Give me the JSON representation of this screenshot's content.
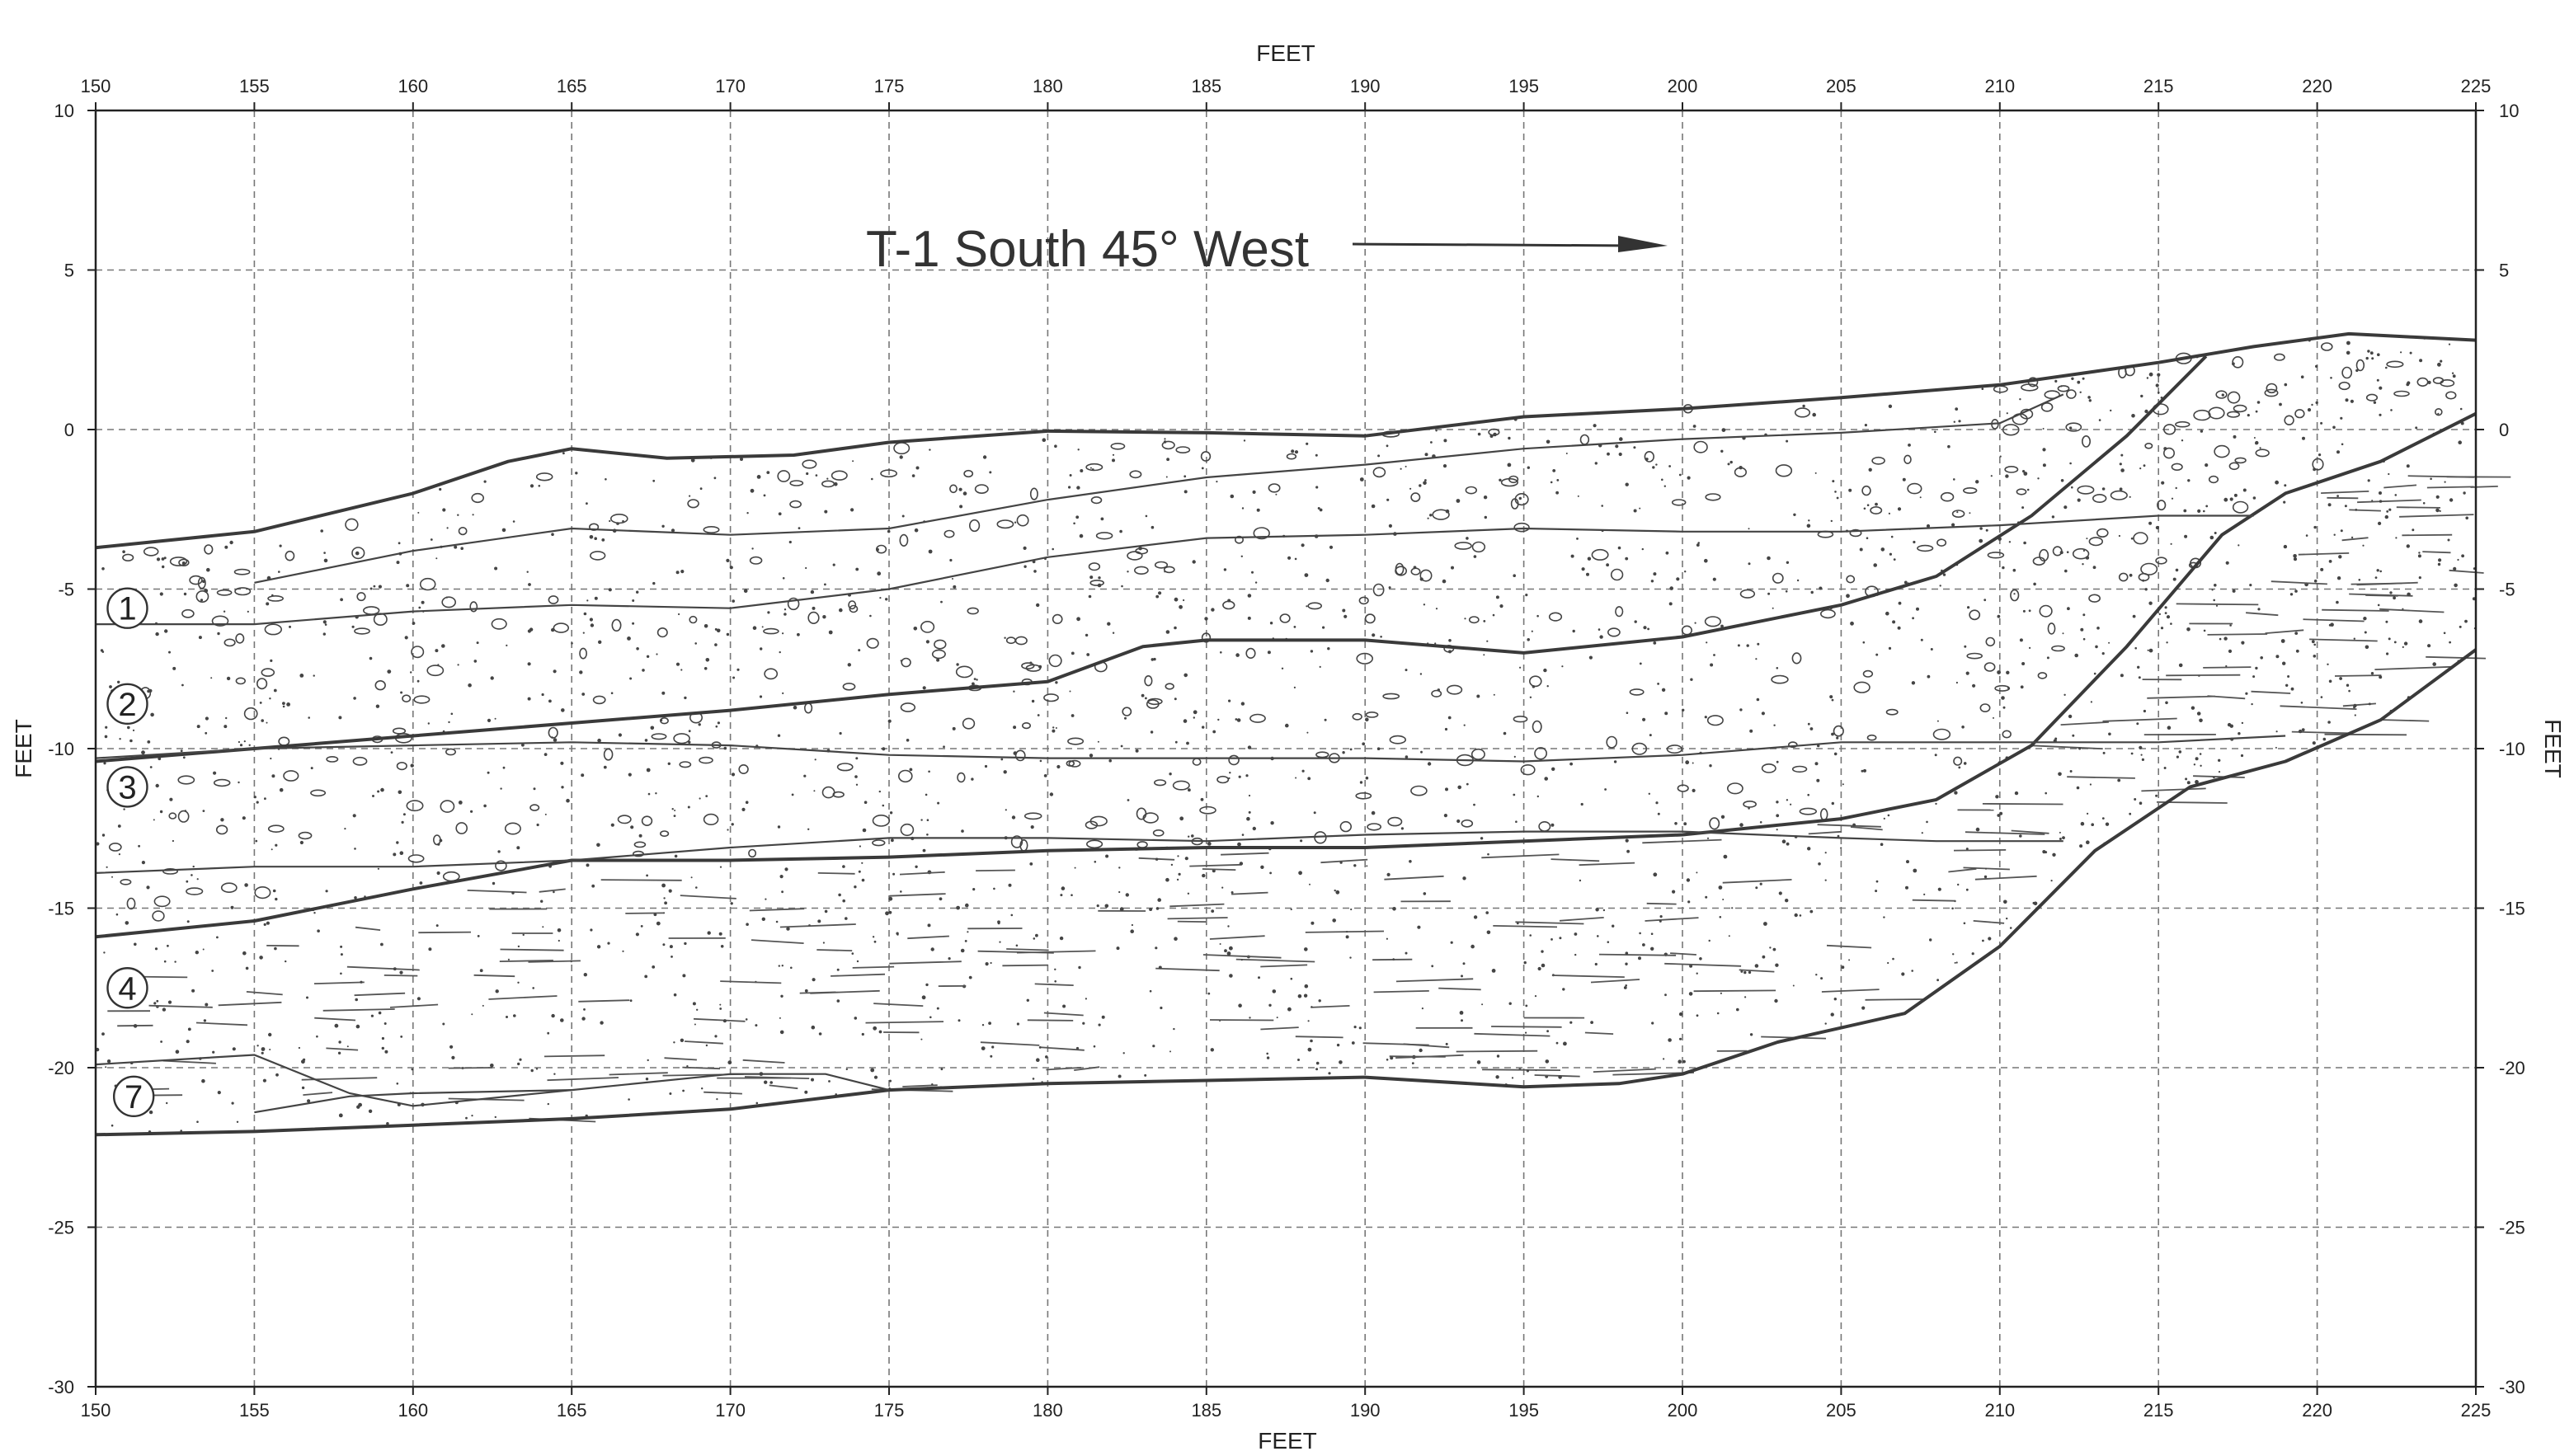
{
  "figure": {
    "title": "T-1  South 45° West",
    "x_axis_label": "FEET",
    "y_axis_label": "FEET",
    "x_range": [
      150,
      225
    ],
    "y_range": [
      -30,
      10
    ],
    "x_ticks": [
      "150",
      "155",
      "160",
      "165",
      "170",
      "175",
      "180",
      "185",
      "190",
      "195",
      "200",
      "205",
      "210",
      "215",
      "220",
      "225"
    ],
    "y_ticks": [
      "10",
      "5",
      "0",
      "-5",
      "-10",
      "-15",
      "-20",
      "-25",
      "-30"
    ]
  },
  "units": [
    {
      "label": "1",
      "x": 151,
      "y": -5.6
    },
    {
      "label": "2",
      "x": 151,
      "y": -8.6
    },
    {
      "label": "3",
      "x": 151,
      "y": -11.2
    },
    {
      "label": "4",
      "x": 151,
      "y": -17.5
    },
    {
      "label": "7",
      "x": 151.2,
      "y": -20.9
    }
  ],
  "contacts": [
    {
      "name": "ground-surface",
      "weight": "heavy",
      "points": [
        [
          150,
          -3.7
        ],
        [
          155,
          -3.2
        ],
        [
          160,
          -2
        ],
        [
          163,
          -1
        ],
        [
          165,
          -0.6
        ],
        [
          168,
          -0.9
        ],
        [
          172,
          -0.8
        ],
        [
          175,
          -0.4
        ],
        [
          180,
          -0.05
        ],
        [
          185,
          -0.1
        ],
        [
          190,
          -0.2
        ],
        [
          195,
          0.4
        ],
        [
          200,
          0.65
        ],
        [
          205,
          1
        ],
        [
          210,
          1.4
        ],
        [
          215,
          2.1
        ],
        [
          218,
          2.6
        ],
        [
          221,
          3
        ],
        [
          223,
          2.9
        ],
        [
          225,
          2.8
        ]
      ]
    },
    {
      "name": "unit-1-base",
      "weight": "heavy",
      "points": [
        [
          150,
          -10.4
        ],
        [
          155,
          -10
        ],
        [
          160,
          -9.6
        ],
        [
          165,
          -9.2
        ],
        [
          170,
          -8.8
        ],
        [
          175,
          -8.3
        ],
        [
          180,
          -7.9
        ],
        [
          183,
          -6.8
        ],
        [
          185,
          -6.6
        ],
        [
          190,
          -6.6
        ],
        [
          195,
          -7
        ],
        [
          200,
          -6.5
        ],
        [
          205,
          -5.5
        ],
        [
          208,
          -4.6
        ],
        [
          211,
          -2.7
        ],
        [
          214,
          -0.2
        ],
        [
          216.5,
          2.3
        ]
      ]
    },
    {
      "name": "unit-2-3-base",
      "weight": "heavy",
      "points": [
        [
          150,
          -15.9
        ],
        [
          155,
          -15.4
        ],
        [
          160,
          -14.4
        ],
        [
          165,
          -13.5
        ],
        [
          170,
          -13.5
        ],
        [
          175,
          -13.4
        ],
        [
          180,
          -13.2
        ],
        [
          185,
          -13.1
        ],
        [
          190,
          -13.1
        ],
        [
          195,
          -12.9
        ],
        [
          200,
          -12.7
        ],
        [
          205,
          -12.2
        ],
        [
          208,
          -11.6
        ],
        [
          211,
          -9.9
        ],
        [
          214,
          -6.8
        ],
        [
          217,
          -3.3
        ],
        [
          219,
          -2
        ],
        [
          222,
          -1
        ],
        [
          225,
          0.5
        ]
      ]
    },
    {
      "name": "unit-4-base",
      "weight": "heavy",
      "points": [
        [
          150,
          -22.1
        ],
        [
          155,
          -22
        ],
        [
          160,
          -21.8
        ],
        [
          165,
          -21.6
        ],
        [
          170,
          -21.3
        ],
        [
          175,
          -20.7
        ],
        [
          180,
          -20.5
        ],
        [
          185,
          -20.4
        ],
        [
          190,
          -20.3
        ],
        [
          195,
          -20.6
        ],
        [
          198,
          -20.5
        ],
        [
          200,
          -20.2
        ],
        [
          203,
          -19.2
        ],
        [
          207,
          -18.3
        ],
        [
          210,
          -16.2
        ],
        [
          213,
          -13.2
        ],
        [
          216,
          -11.2
        ],
        [
          219,
          -10.4
        ],
        [
          222,
          -9.1
        ],
        [
          225,
          -6.9
        ]
      ]
    },
    {
      "name": "inner-contact-a",
      "weight": "light",
      "points": [
        [
          155,
          -4.8
        ],
        [
          160,
          -3.8
        ],
        [
          165,
          -3.1
        ],
        [
          170,
          -3.3
        ],
        [
          175,
          -3.1
        ],
        [
          180,
          -2.2
        ],
        [
          185,
          -1.5
        ],
        [
          190,
          -1.1
        ],
        [
          195,
          -0.6
        ],
        [
          200,
          -0.3
        ],
        [
          205,
          -0.1
        ],
        [
          210,
          0.2
        ],
        [
          212,
          1.1
        ]
      ]
    },
    {
      "name": "inner-contact-b",
      "weight": "light",
      "points": [
        [
          150,
          -6.1
        ],
        [
          155,
          -6.1
        ],
        [
          160,
          -5.7
        ],
        [
          165,
          -5.5
        ],
        [
          170,
          -5.6
        ],
        [
          175,
          -5
        ],
        [
          180,
          -4
        ],
        [
          185,
          -3.4
        ],
        [
          190,
          -3.3
        ],
        [
          195,
          -3.1
        ],
        [
          200,
          -3.2
        ],
        [
          205,
          -3.2
        ],
        [
          210,
          -3
        ],
        [
          215,
          -2.7
        ],
        [
          218,
          -2.7
        ]
      ]
    },
    {
      "name": "inner-contact-c",
      "weight": "light",
      "points": [
        [
          150,
          -13.9
        ],
        [
          155,
          -13.7
        ],
        [
          160,
          -13.7
        ],
        [
          165,
          -13.5
        ],
        [
          170,
          -13.1
        ],
        [
          175,
          -12.8
        ],
        [
          180,
          -12.8
        ],
        [
          185,
          -12.9
        ],
        [
          190,
          -12.7
        ],
        [
          195,
          -12.6
        ],
        [
          200,
          -12.6
        ],
        [
          205,
          -12.8
        ],
        [
          208,
          -12.9
        ],
        [
          212,
          -12.9
        ]
      ]
    },
    {
      "name": "inner-contact-d",
      "weight": "light",
      "points": [
        [
          150,
          -10.3
        ],
        [
          155,
          -10
        ],
        [
          160,
          -9.9
        ],
        [
          165,
          -9.8
        ],
        [
          170,
          -9.9
        ],
        [
          175,
          -10.2
        ],
        [
          180,
          -10.3
        ],
        [
          185,
          -10.3
        ],
        [
          190,
          -10.3
        ],
        [
          195,
          -10.4
        ],
        [
          200,
          -10.2
        ],
        [
          205,
          -9.8
        ],
        [
          210,
          -9.8
        ],
        [
          215,
          -9.8
        ],
        [
          219,
          -9.6
        ]
      ]
    },
    {
      "name": "inner-contact-e",
      "weight": "light",
      "points": [
        [
          150,
          -19.9
        ],
        [
          155,
          -19.6
        ],
        [
          158,
          -20.8
        ],
        [
          160,
          -21.2
        ],
        [
          165,
          -20.7
        ],
        [
          170,
          -20.2
        ],
        [
          173,
          -20.2
        ],
        [
          175,
          -20.7
        ]
      ]
    },
    {
      "name": "inner-contact-f",
      "weight": "light",
      "points": [
        [
          155,
          -21.4
        ],
        [
          158,
          -20.9
        ],
        [
          160,
          -20.8
        ],
        [
          165,
          -20.7
        ]
      ]
    }
  ]
}
